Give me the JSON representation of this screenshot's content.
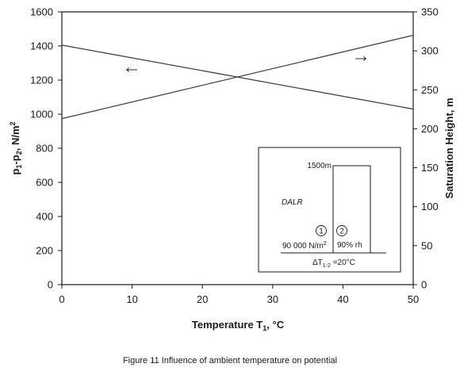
{
  "chart_data": {
    "type": "line",
    "title": "",
    "xlabel": "Temperature T",
    "xlabel_sub": "1",
    "xlabel_unit": ", °C",
    "ylabel_left_main": "p",
    "ylabel_left_sub1": "1",
    "ylabel_left_dash": "-p",
    "ylabel_left_sub2": "2",
    "ylabel_left_unit": ", N/m",
    "ylabel_left_sup": "2",
    "ylabel_right": "Saturation Height, m",
    "xlim": [
      0,
      50
    ],
    "ylim_left": [
      0,
      1600
    ],
    "ylim_right": [
      0,
      350
    ],
    "x_ticks": [
      0,
      10,
      20,
      30,
      40,
      50
    ],
    "y_left_ticks": [
      0,
      200,
      400,
      600,
      800,
      1000,
      1200,
      1400,
      1600
    ],
    "y_right_ticks": [
      0,
      50,
      100,
      150,
      200,
      250,
      300,
      350
    ],
    "grid": false,
    "series": [
      {
        "axis": "left",
        "x": [
          0,
          50
        ],
        "values": [
          1405,
          1030
        ]
      },
      {
        "axis": "right",
        "x": [
          0,
          50
        ],
        "values": [
          213,
          320
        ]
      }
    ],
    "annotations": {
      "left_arrow": "←",
      "right_arrow": "→"
    },
    "inset": {
      "height_label": "1500m",
      "dalr_label": "DALR",
      "point1": "1",
      "point2": "2",
      "pressure_label": "90 000 N/m",
      "pressure_sup": "2",
      "rh_label": "90% rh",
      "delta_label": "ΔT",
      "delta_sub": "1-2",
      "delta_value": " =20°C"
    }
  },
  "caption": "Figure 11  Influence of ambient temperature on potential"
}
